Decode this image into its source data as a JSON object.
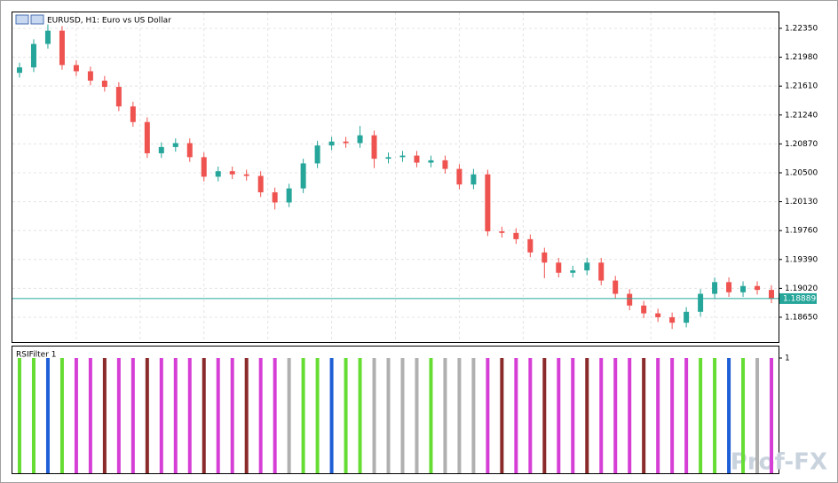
{
  "chart_data": [
    {
      "type": "candlestick",
      "title": "EURUSD, H1:  Euro vs US Dollar",
      "up_color": "#26a69a",
      "down_color": "#ef5350",
      "open": [
        1.2178,
        1.2185,
        1.2215,
        1.2232,
        1.2188,
        1.218,
        1.2168,
        1.216,
        1.2135,
        1.2115,
        1.2075,
        1.2083,
        1.2088,
        1.207,
        1.2045,
        1.2052,
        1.2048,
        1.2046,
        1.2025,
        1.2012,
        1.203,
        1.2062,
        1.2085,
        1.209,
        1.2088,
        1.2098,
        1.2068,
        1.207,
        1.2072,
        1.2063,
        1.2066,
        1.2055,
        1.2035,
        1.2048,
        1.1975,
        1.1973,
        1.1965,
        1.1948,
        1.1935,
        1.1922,
        1.1925,
        1.1935,
        1.1912,
        1.1895,
        1.188,
        1.187,
        1.1865,
        1.1858,
        1.1872,
        1.1895,
        1.191,
        1.1897,
        1.1905,
        1.19
      ],
      "high": [
        1.2191,
        1.2221,
        1.224,
        1.2238,
        1.2194,
        1.2186,
        1.2174,
        1.2166,
        1.2141,
        1.2121,
        1.2089,
        1.2094,
        1.2094,
        1.2076,
        1.2058,
        1.2058,
        1.2054,
        1.2052,
        1.2031,
        1.2036,
        1.2068,
        1.2091,
        1.2096,
        1.2096,
        1.211,
        1.2104,
        1.2076,
        1.2078,
        1.2078,
        1.2072,
        1.2072,
        1.2061,
        1.2055,
        1.2054,
        1.1981,
        1.1979,
        1.1971,
        1.1954,
        1.1941,
        1.1931,
        1.1941,
        1.1941,
        1.1918,
        1.1901,
        1.1886,
        1.1876,
        1.1871,
        1.1878,
        1.1901,
        1.1916,
        1.1916,
        1.1911,
        1.1911,
        1.1906
      ],
      "low": [
        1.2172,
        1.2179,
        1.2209,
        1.2182,
        1.2174,
        1.2162,
        1.2154,
        1.2129,
        1.2109,
        1.2069,
        1.2069,
        1.2077,
        1.2064,
        1.2039,
        1.2039,
        1.2042,
        1.204,
        1.2019,
        1.2003,
        1.2006,
        1.2024,
        1.2056,
        1.2079,
        1.2082,
        1.2082,
        1.2056,
        1.2062,
        1.2064,
        1.2057,
        1.2057,
        1.2049,
        1.2029,
        1.2029,
        1.1969,
        1.1967,
        1.1959,
        1.1942,
        1.1915,
        1.1916,
        1.1916,
        1.1919,
        1.1906,
        1.1889,
        1.1874,
        1.1864,
        1.1859,
        1.185,
        1.1852,
        1.1866,
        1.1889,
        1.1891,
        1.1891,
        1.1894,
        1.1883
      ],
      "close": [
        1.2185,
        1.2215,
        1.2232,
        1.2188,
        1.218,
        1.2168,
        1.216,
        1.2135,
        1.2115,
        1.2075,
        1.2083,
        1.2088,
        1.207,
        1.2045,
        1.2052,
        1.2048,
        1.2046,
        1.2025,
        1.2012,
        1.203,
        1.2062,
        1.2085,
        1.209,
        1.2088,
        1.2098,
        1.2068,
        1.207,
        1.2072,
        1.2063,
        1.2066,
        1.2055,
        1.2035,
        1.2048,
        1.1975,
        1.1973,
        1.1965,
        1.1948,
        1.1935,
        1.1922,
        1.1925,
        1.1935,
        1.1912,
        1.1895,
        1.188,
        1.187,
        1.1865,
        1.1858,
        1.1872,
        1.1895,
        1.191,
        1.1897,
        1.1905,
        1.19,
        1.1889
      ],
      "ylim": [
        1.18332,
        1.22554
      ],
      "yticks": [
        {
          "value": 1.2235,
          "label": "1.22350"
        },
        {
          "value": 1.2198,
          "label": "1.21980"
        },
        {
          "value": 1.2161,
          "label": "1.21610"
        },
        {
          "value": 1.2124,
          "label": "1.21240"
        },
        {
          "value": 1.2087,
          "label": "1.20870"
        },
        {
          "value": 1.205,
          "label": "1.20500"
        },
        {
          "value": 1.2013,
          "label": "1.20130"
        },
        {
          "value": 1.1976,
          "label": "1.19760"
        },
        {
          "value": 1.1939,
          "label": "1.19390"
        },
        {
          "value": 1.1902,
          "label": "1.19020"
        },
        {
          "value": 1.1865,
          "label": "1.18650"
        }
      ],
      "current_price": 1.18889,
      "current_price_color": "#26a69a",
      "grid": true
    },
    {
      "type": "bar",
      "title": "RSIFilter 1",
      "ylim": [
        0,
        1
      ],
      "yticks": [
        1
      ],
      "values": [
        1,
        1,
        1,
        1,
        1,
        1,
        1,
        1,
        1,
        1,
        1,
        1,
        1,
        1,
        1,
        1,
        1,
        1,
        1,
        1,
        1,
        1,
        1,
        1,
        1,
        1,
        1,
        1,
        1,
        1,
        1,
        1,
        1,
        1,
        1,
        1,
        1,
        1,
        1,
        1,
        1,
        1,
        1,
        1,
        1,
        1,
        1,
        1,
        1,
        1,
        1,
        1,
        1,
        1
      ],
      "colors": [
        "#66dd33",
        "#66dd33",
        "#1f5fd6",
        "#66dd33",
        "#d63fd6",
        "#d63fd6",
        "#8b2a2a",
        "#d63fd6",
        "#d63fd6",
        "#8b2a2a",
        "#d63fd6",
        "#d63fd6",
        "#d63fd6",
        "#8b2a2a",
        "#d63fd6",
        "#d63fd6",
        "#8b2a2a",
        "#d63fd6",
        "#d63fd6",
        "#b0b0b0",
        "#66dd33",
        "#66dd33",
        "#1f5fd6",
        "#66dd33",
        "#66dd33",
        "#b0b0b0",
        "#b0b0b0",
        "#b0b0b0",
        "#b0b0b0",
        "#66dd33",
        "#b0b0b0",
        "#b0b0b0",
        "#b0b0b0",
        "#d63fd6",
        "#8b2a2a",
        "#d63fd6",
        "#d63fd6",
        "#8b2a2a",
        "#d63fd6",
        "#d63fd6",
        "#8b2a2a",
        "#d63fd6",
        "#d63fd6",
        "#d63fd6",
        "#8b2a2a",
        "#d63fd6",
        "#d63fd6",
        "#d63fd6",
        "#66dd33",
        "#66dd33",
        "#1f5fd6",
        "#66dd33",
        "#b0b0b0",
        "#d63fd6"
      ]
    }
  ],
  "watermark": "Prof-FX"
}
